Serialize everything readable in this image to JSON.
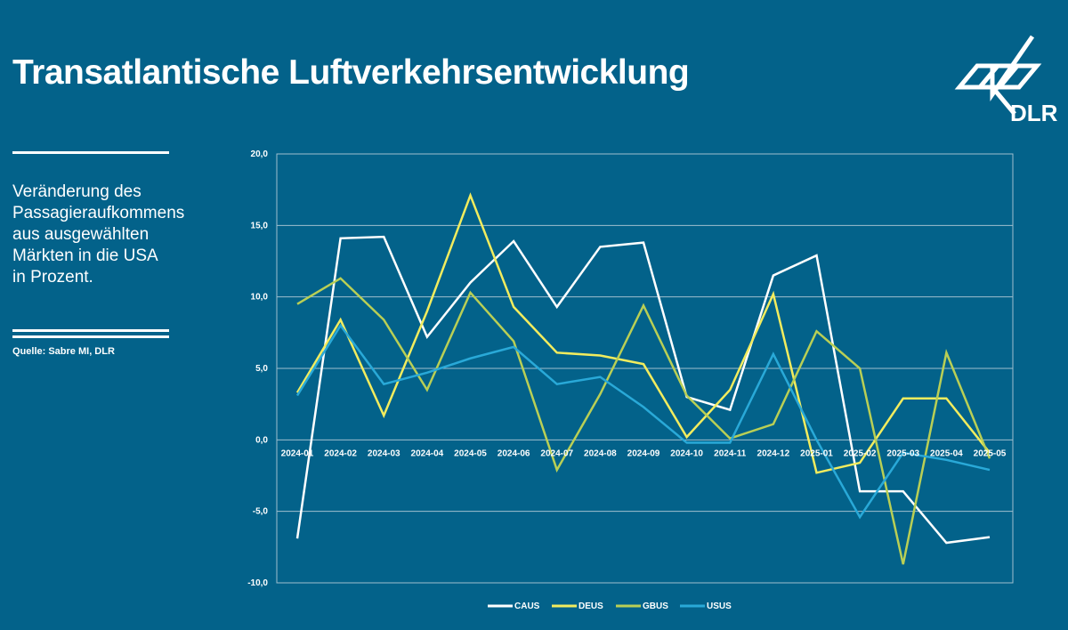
{
  "header": {
    "title": "Transatlantische Luftverkehrsentwicklung",
    "subtitle": "Veränderung des\nPassagieraufkommens\naus ausgewählten\nMärkten in die USA\nin Prozent.",
    "source": "Quelle: Sabre MI, DLR",
    "logo_text": "DLR"
  },
  "colors": {
    "background": "#03628a",
    "CAUS": "#ffffff",
    "DEUS": "#f2ec5e",
    "GBUS": "#b9cf55",
    "USUS": "#29a9d8",
    "grid": "#9fbfcf"
  },
  "chart_data": {
    "type": "line",
    "categories": [
      "2024-01",
      "2024-02",
      "2024-03",
      "2024-04",
      "2024-05",
      "2024-06",
      "2024-07",
      "2024-08",
      "2024-09",
      "2024-10",
      "2024-11",
      "2024-12",
      "2025-01",
      "2025-02",
      "2025-03",
      "2025-04",
      "2025-05"
    ],
    "ylim": [
      -10,
      20
    ],
    "yticks": [
      "20,0",
      "15,0",
      "10,0",
      "5,0",
      "0,0",
      "-5,0",
      "-10,0"
    ],
    "ytick_values": [
      20,
      15,
      10,
      5,
      0,
      -5,
      -10
    ],
    "grid": true,
    "legend": "bottom",
    "series": [
      {
        "name": "CAUS",
        "values": [
          -6.9,
          14.1,
          14.2,
          7.2,
          11.0,
          13.9,
          9.3,
          13.5,
          13.8,
          3.0,
          2.1,
          11.5,
          12.9,
          -3.6,
          -3.6,
          -7.2,
          -6.8
        ]
      },
      {
        "name": "DEUS",
        "values": [
          3.3,
          8.4,
          1.7,
          9.0,
          17.1,
          9.3,
          6.1,
          5.9,
          5.3,
          0.2,
          3.5,
          10.2,
          -2.3,
          -1.6,
          2.9,
          2.9,
          -0.9
        ]
      },
      {
        "name": "GBUS",
        "values": [
          9.5,
          11.3,
          8.4,
          3.5,
          10.3,
          6.9,
          -2.1,
          3.2,
          9.4,
          3.1,
          0.1,
          1.1,
          7.6,
          5.0,
          -8.7,
          6.1,
          -1.3
        ]
      },
      {
        "name": "USUS",
        "values": [
          3.1,
          8.0,
          3.9,
          4.7,
          5.7,
          6.5,
          3.9,
          4.4,
          2.3,
          -0.2,
          -0.2,
          6.0,
          0.0,
          -5.4,
          -0.9,
          -1.4,
          -2.1
        ]
      }
    ]
  }
}
